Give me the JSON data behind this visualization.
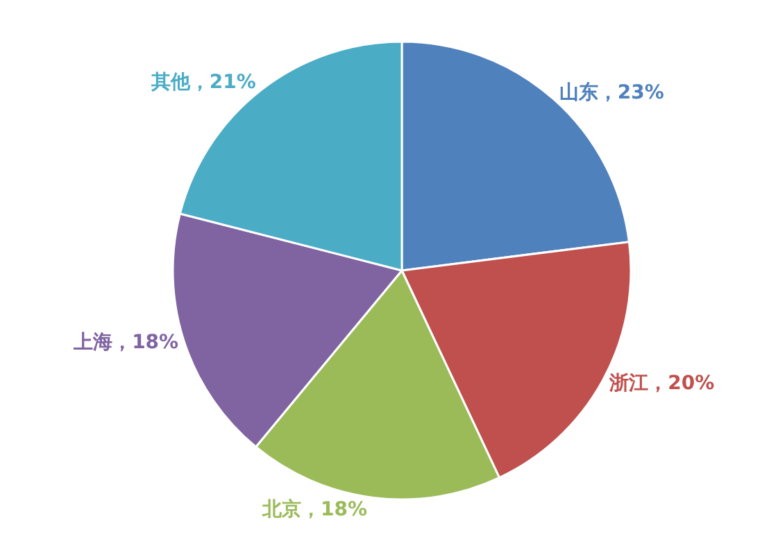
{
  "chart_data": {
    "type": "pie",
    "categories": [
      "山东",
      "浙江",
      "北京",
      "上海",
      "其他"
    ],
    "values": [
      23,
      20,
      18,
      18,
      21
    ],
    "colors": [
      "#4f81bd",
      "#c0504d",
      "#9bbb59",
      "#8064a2",
      "#4bacc6"
    ],
    "value_labels": [
      "23%",
      "20%",
      "18%",
      "18%",
      "21%"
    ],
    "legend": false
  }
}
